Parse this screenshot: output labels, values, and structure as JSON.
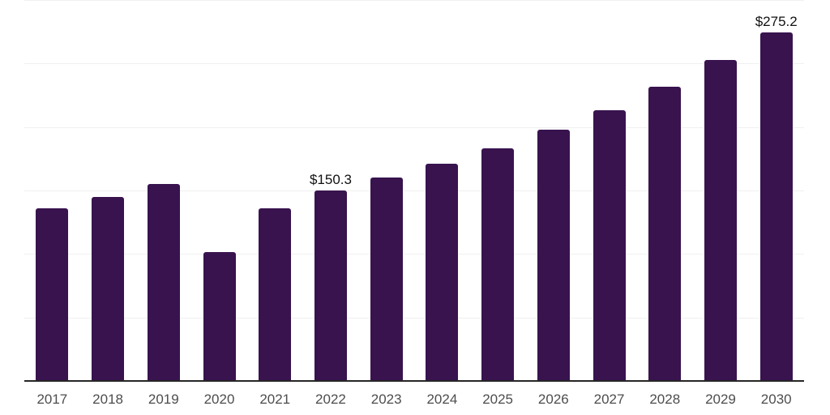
{
  "chart_data": {
    "type": "bar",
    "title": "",
    "xlabel": "",
    "ylabel": "",
    "categories": [
      "2017",
      "2018",
      "2019",
      "2020",
      "2021",
      "2022",
      "2023",
      "2024",
      "2025",
      "2026",
      "2027",
      "2028",
      "2029",
      "2030"
    ],
    "values": [
      136.2,
      145.4,
      155.2,
      101.9,
      136.0,
      150.3,
      160.5,
      171.5,
      183.7,
      198.3,
      213.8,
      232.0,
      253.1,
      275.2
    ],
    "data_labels": [
      "",
      "",
      "",
      "",
      "",
      "$150.3",
      "",
      "",
      "",
      "",
      "",
      "",
      "",
      "$275.2"
    ],
    "currency_prefix": "$",
    "ylim": [
      0,
      300.6
    ],
    "gridline_values": [
      50.1,
      100.2,
      150.3,
      200.4,
      250.5,
      300.6
    ],
    "grid": "horizontal-only",
    "legend": "none",
    "y_axis_labels": "none",
    "colors": {
      "bar": "#38134E",
      "gridline": "#F0F0F0",
      "axis_line": "#262626",
      "tick_label": "#4D4D4D",
      "data_label": "#111111",
      "background": "#FFFFFF"
    }
  }
}
